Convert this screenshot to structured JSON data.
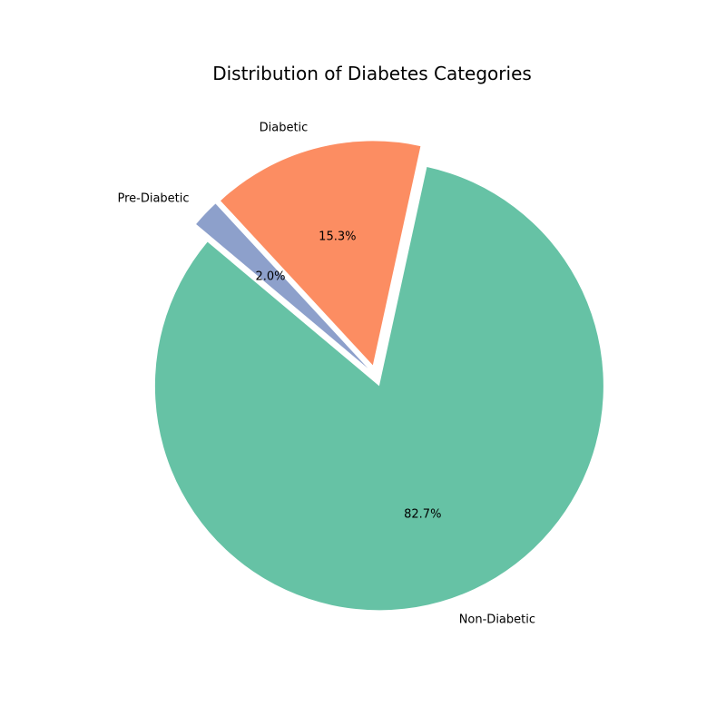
{
  "chart_data": {
    "type": "pie",
    "title": "Distribution of Diabetes Categories",
    "slices": [
      {
        "label": "Non-Diabetic",
        "value": 82.7,
        "pct_label": "82.7%",
        "color": "#66c2a5",
        "exploded": true
      },
      {
        "label": "Diabetic",
        "value": 15.3,
        "pct_label": "15.3%",
        "color": "#fc8d62",
        "exploded": true
      },
      {
        "label": "Pre-Diabetic",
        "value": 2.0,
        "pct_label": "2.0%",
        "color": "#8da0cb",
        "exploded": true
      }
    ],
    "start_angle_deg": 140,
    "direction": "counterclockwise",
    "legend": "none"
  }
}
